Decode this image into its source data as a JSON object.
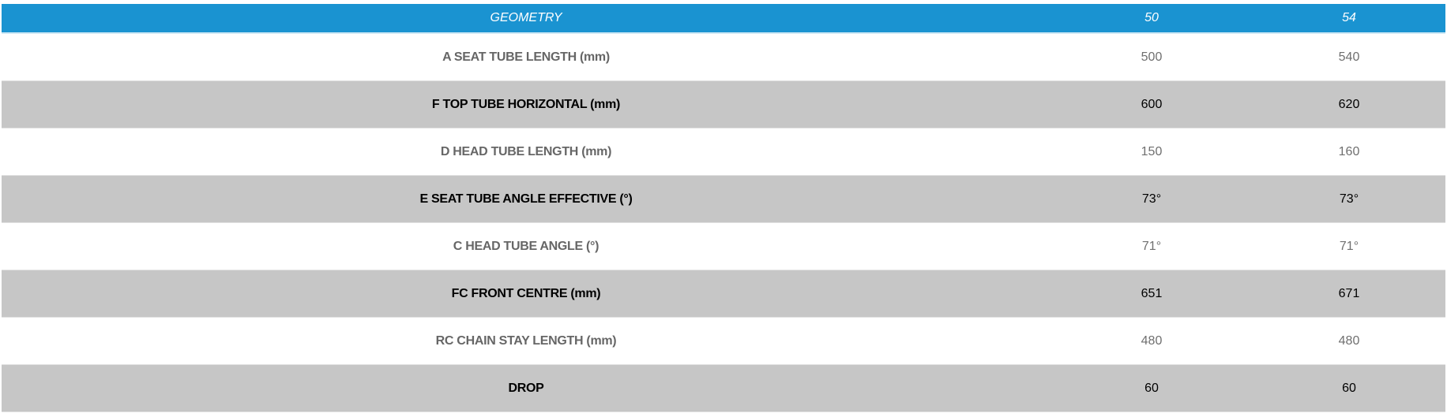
{
  "header": {
    "title": "GEOMETRY",
    "sizes": [
      "50",
      "54"
    ]
  },
  "colors": {
    "header_bg": "#1a93d1",
    "stripe": "#c6c6c6"
  },
  "rows": [
    {
      "label": "A SEAT TUBE LENGTH (mm)",
      "values": [
        "500",
        "540"
      ]
    },
    {
      "label": "F TOP TUBE HORIZONTAL (mm)",
      "values": [
        "600",
        "620"
      ]
    },
    {
      "label": "D HEAD TUBE LENGTH (mm)",
      "values": [
        "150",
        "160"
      ]
    },
    {
      "label": "E SEAT TUBE ANGLE EFFECTIVE (°)",
      "values": [
        "73°",
        "73°"
      ]
    },
    {
      "label": "C HEAD TUBE ANGLE (°)",
      "values": [
        "71°",
        "71°"
      ]
    },
    {
      "label": "FC FRONT CENTRE (mm)",
      "values": [
        "651",
        "671"
      ]
    },
    {
      "label": "RC CHAIN STAY LENGTH (mm)",
      "values": [
        "480",
        "480"
      ]
    },
    {
      "label": "DROP",
      "values": [
        "60",
        "60"
      ]
    }
  ]
}
